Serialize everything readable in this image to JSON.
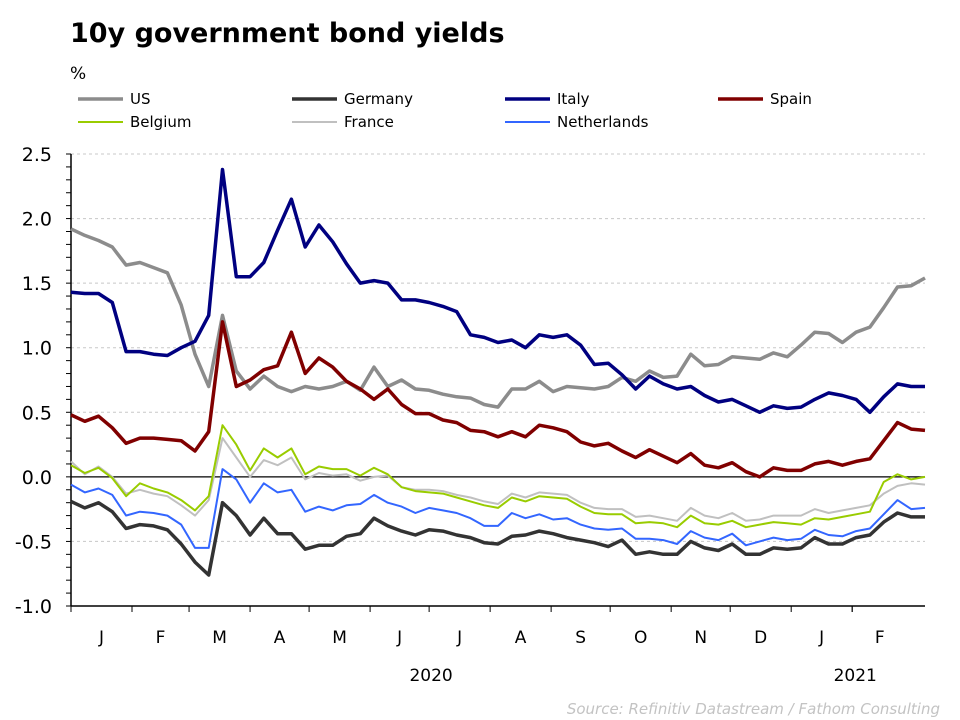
{
  "chart_data": {
    "type": "line",
    "title": "10y government bond yields",
    "ylabel": "%",
    "source": "Source: Refinitiv Datastream / Fathom Consulting",
    "ylim": [
      -1.0,
      2.5
    ],
    "yticks": [
      "2.5",
      "2.0",
      "1.5",
      "1.0",
      "0.5",
      "0.0",
      "-0.5",
      "-1.0"
    ],
    "grid": true,
    "legend_position": "top",
    "xlim": [
      "2020-01-01",
      "2021-03-10"
    ],
    "month_labels": [
      "J",
      "F",
      "M",
      "A",
      "M",
      "J",
      "J",
      "A",
      "S",
      "O",
      "N",
      "D",
      "J",
      "F"
    ],
    "year_labels": [
      "2020",
      "2021"
    ],
    "x": [
      "2020-01-01",
      "2020-01-08",
      "2020-01-15",
      "2020-01-22",
      "2020-01-29",
      "2020-02-05",
      "2020-02-12",
      "2020-02-19",
      "2020-02-26",
      "2020-03-04",
      "2020-03-11",
      "2020-03-18",
      "2020-03-25",
      "2020-04-01",
      "2020-04-08",
      "2020-04-15",
      "2020-04-22",
      "2020-04-29",
      "2020-05-06",
      "2020-05-13",
      "2020-05-20",
      "2020-05-27",
      "2020-06-03",
      "2020-06-10",
      "2020-06-17",
      "2020-06-24",
      "2020-07-01",
      "2020-07-08",
      "2020-07-15",
      "2020-07-22",
      "2020-07-29",
      "2020-08-05",
      "2020-08-12",
      "2020-08-19",
      "2020-08-26",
      "2020-09-02",
      "2020-09-09",
      "2020-09-16",
      "2020-09-23",
      "2020-09-30",
      "2020-10-07",
      "2020-10-14",
      "2020-10-21",
      "2020-10-28",
      "2020-11-04",
      "2020-11-11",
      "2020-11-18",
      "2020-11-25",
      "2020-12-02",
      "2020-12-09",
      "2020-12-16",
      "2020-12-23",
      "2020-12-30",
      "2021-01-06",
      "2021-01-13",
      "2021-01-20",
      "2021-01-27",
      "2021-02-03",
      "2021-02-10",
      "2021-02-17",
      "2021-02-24",
      "2021-03-03",
      "2021-03-10"
    ],
    "series": [
      {
        "name": "US",
        "color": "#8c8c8c",
        "width": 3.5,
        "values": [
          1.92,
          1.87,
          1.83,
          1.78,
          1.64,
          1.66,
          1.62,
          1.58,
          1.33,
          0.95,
          0.7,
          1.25,
          0.82,
          0.68,
          0.78,
          0.7,
          0.66,
          0.7,
          0.68,
          0.7,
          0.74,
          0.67,
          0.85,
          0.7,
          0.75,
          0.68,
          0.67,
          0.64,
          0.62,
          0.61,
          0.56,
          0.54,
          0.68,
          0.68,
          0.74,
          0.66,
          0.7,
          0.69,
          0.68,
          0.7,
          0.77,
          0.74,
          0.82,
          0.77,
          0.78,
          0.95,
          0.86,
          0.87,
          0.93,
          0.92,
          0.91,
          0.96,
          0.93,
          1.02,
          1.12,
          1.11,
          1.04,
          1.12,
          1.16,
          1.31,
          1.47,
          1.48,
          1.54
        ]
      },
      {
        "name": "Germany",
        "color": "#333333",
        "width": 3.5,
        "values": [
          -0.19,
          -0.24,
          -0.2,
          -0.27,
          -0.4,
          -0.37,
          -0.38,
          -0.41,
          -0.52,
          -0.66,
          -0.76,
          -0.2,
          -0.3,
          -0.45,
          -0.32,
          -0.44,
          -0.44,
          -0.56,
          -0.53,
          -0.53,
          -0.46,
          -0.44,
          -0.32,
          -0.38,
          -0.42,
          -0.45,
          -0.41,
          -0.42,
          -0.45,
          -0.47,
          -0.51,
          -0.52,
          -0.46,
          -0.45,
          -0.42,
          -0.44,
          -0.47,
          -0.49,
          -0.51,
          -0.54,
          -0.49,
          -0.6,
          -0.58,
          -0.6,
          -0.6,
          -0.5,
          -0.55,
          -0.57,
          -0.52,
          -0.6,
          -0.6,
          -0.55,
          -0.56,
          -0.55,
          -0.47,
          -0.52,
          -0.52,
          -0.47,
          -0.45,
          -0.35,
          -0.28,
          -0.31,
          -0.31
        ]
      },
      {
        "name": "Italy",
        "color": "#000080",
        "width": 3.5,
        "values": [
          1.43,
          1.42,
          1.42,
          1.35,
          0.97,
          0.97,
          0.95,
          0.94,
          1.0,
          1.05,
          1.25,
          2.38,
          1.55,
          1.55,
          1.66,
          1.91,
          2.15,
          1.78,
          1.95,
          1.82,
          1.65,
          1.5,
          1.52,
          1.5,
          1.37,
          1.37,
          1.35,
          1.32,
          1.28,
          1.1,
          1.08,
          1.04,
          1.06,
          1.0,
          1.1,
          1.08,
          1.1,
          1.02,
          0.87,
          0.88,
          0.79,
          0.68,
          0.78,
          0.72,
          0.68,
          0.7,
          0.63,
          0.58,
          0.6,
          0.55,
          0.5,
          0.55,
          0.53,
          0.54,
          0.6,
          0.65,
          0.63,
          0.6,
          0.5,
          0.62,
          0.72,
          0.7,
          0.7
        ]
      },
      {
        "name": "Spain",
        "color": "#800000",
        "width": 3.5,
        "values": [
          0.48,
          0.43,
          0.47,
          0.38,
          0.26,
          0.3,
          0.3,
          0.29,
          0.28,
          0.2,
          0.35,
          1.2,
          0.7,
          0.75,
          0.83,
          0.86,
          1.12,
          0.8,
          0.92,
          0.85,
          0.74,
          0.68,
          0.6,
          0.68,
          0.56,
          0.49,
          0.49,
          0.44,
          0.42,
          0.36,
          0.35,
          0.31,
          0.35,
          0.31,
          0.4,
          0.38,
          0.35,
          0.27,
          0.24,
          0.26,
          0.2,
          0.15,
          0.21,
          0.16,
          0.11,
          0.18,
          0.09,
          0.07,
          0.11,
          0.04,
          0.0,
          0.07,
          0.05,
          0.05,
          0.1,
          0.12,
          0.09,
          0.12,
          0.14,
          0.28,
          0.42,
          0.37,
          0.36
        ]
      },
      {
        "name": "Belgium",
        "color": "#99cc00",
        "width": 2,
        "values": [
          0.09,
          0.03,
          0.07,
          -0.01,
          -0.15,
          -0.05,
          -0.09,
          -0.12,
          -0.18,
          -0.26,
          -0.15,
          0.4,
          0.25,
          0.05,
          0.22,
          0.15,
          0.22,
          0.02,
          0.08,
          0.06,
          0.06,
          0.01,
          0.07,
          0.02,
          -0.08,
          -0.11,
          -0.12,
          -0.13,
          -0.16,
          -0.19,
          -0.22,
          -0.24,
          -0.16,
          -0.19,
          -0.15,
          -0.16,
          -0.17,
          -0.23,
          -0.28,
          -0.29,
          -0.29,
          -0.36,
          -0.35,
          -0.36,
          -0.39,
          -0.3,
          -0.36,
          -0.37,
          -0.34,
          -0.39,
          -0.37,
          -0.35,
          -0.36,
          -0.37,
          -0.32,
          -0.33,
          -0.31,
          -0.29,
          -0.27,
          -0.04,
          0.02,
          -0.02,
          0.0
        ]
      },
      {
        "name": "France",
        "color": "#c0c0c0",
        "width": 2,
        "values": [
          0.12,
          0.02,
          0.08,
          0.0,
          -0.13,
          -0.1,
          -0.13,
          -0.15,
          -0.22,
          -0.3,
          -0.18,
          0.3,
          0.15,
          0.0,
          0.13,
          0.09,
          0.15,
          -0.02,
          0.03,
          0.01,
          0.02,
          -0.03,
          0.0,
          0.01,
          -0.08,
          -0.1,
          -0.1,
          -0.11,
          -0.14,
          -0.16,
          -0.19,
          -0.21,
          -0.13,
          -0.16,
          -0.12,
          -0.13,
          -0.14,
          -0.2,
          -0.24,
          -0.25,
          -0.25,
          -0.31,
          -0.3,
          -0.32,
          -0.34,
          -0.24,
          -0.3,
          -0.32,
          -0.28,
          -0.34,
          -0.33,
          -0.3,
          -0.3,
          -0.3,
          -0.25,
          -0.28,
          -0.26,
          -0.24,
          -0.22,
          -0.13,
          -0.07,
          -0.05,
          -0.06
        ]
      },
      {
        "name": "Netherlands",
        "color": "#3366ff",
        "width": 2,
        "values": [
          -0.06,
          -0.12,
          -0.09,
          -0.14,
          -0.3,
          -0.27,
          -0.28,
          -0.3,
          -0.37,
          -0.55,
          -0.55,
          0.06,
          -0.02,
          -0.2,
          -0.05,
          -0.12,
          -0.1,
          -0.27,
          -0.23,
          -0.26,
          -0.22,
          -0.21,
          -0.14,
          -0.2,
          -0.23,
          -0.28,
          -0.24,
          -0.26,
          -0.28,
          -0.32,
          -0.38,
          -0.38,
          -0.28,
          -0.32,
          -0.29,
          -0.33,
          -0.32,
          -0.37,
          -0.4,
          -0.41,
          -0.4,
          -0.48,
          -0.48,
          -0.49,
          -0.52,
          -0.42,
          -0.47,
          -0.49,
          -0.44,
          -0.53,
          -0.5,
          -0.47,
          -0.49,
          -0.48,
          -0.41,
          -0.45,
          -0.46,
          -0.42,
          -0.4,
          -0.29,
          -0.18,
          -0.25,
          -0.24
        ]
      }
    ]
  }
}
